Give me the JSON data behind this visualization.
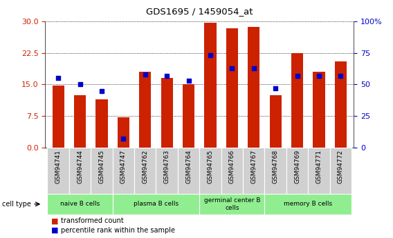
{
  "title": "GDS1695 / 1459054_at",
  "samples": [
    "GSM94741",
    "GSM94744",
    "GSM94745",
    "GSM94747",
    "GSM94762",
    "GSM94763",
    "GSM94764",
    "GSM94765",
    "GSM94766",
    "GSM94767",
    "GSM94768",
    "GSM94769",
    "GSM94771",
    "GSM94772"
  ],
  "transformed_count": [
    14.8,
    12.5,
    11.5,
    7.2,
    18.0,
    16.5,
    15.0,
    29.7,
    28.3,
    28.7,
    12.5,
    22.5,
    18.0,
    20.5
  ],
  "percentile_rank": [
    55,
    50,
    45,
    7,
    58,
    57,
    53,
    73,
    63,
    63,
    47,
    57,
    57,
    57
  ],
  "group_ranges": [
    [
      0,
      3
    ],
    [
      3,
      7
    ],
    [
      7,
      10
    ],
    [
      10,
      14
    ]
  ],
  "group_labels": [
    "naive B cells",
    "plasma B cells",
    "germinal center B\ncells",
    "memory B cells"
  ],
  "bar_color": "#cc2200",
  "dot_color": "#0000cc",
  "left_yticks": [
    0,
    7.5,
    15,
    22.5,
    30
  ],
  "right_yticks": [
    0,
    25,
    50,
    75,
    100
  ],
  "ylim_left": [
    0,
    30
  ],
  "ylim_right": [
    0,
    100
  ],
  "sample_box_color": "#d0d0d0",
  "group_color": "#90ee90",
  "left_tick_color": "#cc2200",
  "right_tick_color": "#0000cc"
}
